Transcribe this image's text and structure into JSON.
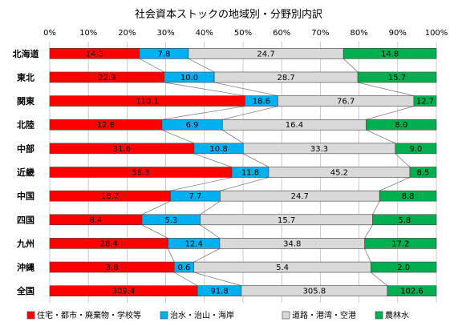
{
  "chart_data": {
    "type": "bar",
    "stacking": "percent",
    "orientation": "horizontal",
    "title": "社会資本ストックの地域別・分野別内訳",
    "xlim": [
      0,
      100
    ],
    "x_tick_labels": [
      "0%",
      "10%",
      "20%",
      "30%",
      "40%",
      "50%",
      "60%",
      "70%",
      "80%",
      "90%",
      "100%"
    ],
    "categories": [
      "北海道",
      "東北",
      "関東",
      "北陸",
      "中部",
      "近畿",
      "中国",
      "四国",
      "九州",
      "沖縄",
      "全国"
    ],
    "series": [
      {
        "name": "住宅・都市・廃棄物・学校等",
        "color": "#ff0000",
        "values": [
          14.3,
          22.9,
          110.1,
          12.8,
          31.6,
          58.3,
          18.7,
          8.4,
          28.4,
          3.8,
          309.4
        ],
        "labels": [
          "14.3",
          "22.9",
          "110.1",
          "12.8",
          "31.6",
          "58.3",
          "18.7",
          "8.4",
          "28.4",
          "3.8",
          "309.4"
        ]
      },
      {
        "name": "治水・治山・海岸",
        "color": "#00b0f0",
        "values": [
          7.8,
          10.0,
          18.6,
          6.9,
          10.8,
          11.8,
          7.7,
          5.3,
          12.4,
          0.6,
          91.8
        ],
        "labels": [
          "7.8",
          "10.0",
          "18.6",
          "6.9",
          "10.8",
          "11.8",
          "7.7",
          "5.3",
          "12.4",
          "0.6",
          "91.8"
        ]
      },
      {
        "name": "道路・港湾・空港",
        "color": "#d9d9d9",
        "values": [
          24.7,
          28.7,
          76.7,
          16.4,
          33.3,
          45.2,
          24.7,
          15.7,
          34.8,
          5.4,
          305.8
        ],
        "labels": [
          "24.7",
          "28.7",
          "76.7",
          "16.4",
          "33.3",
          "45.2",
          "24.7",
          "15.7",
          "34.8",
          "5.4",
          "305.8"
        ]
      },
      {
        "name": "農林水",
        "color": "#00b050",
        "values": [
          14.8,
          15.7,
          12.7,
          8.0,
          9.0,
          8.5,
          8.8,
          5.8,
          17.2,
          2.0,
          102.6
        ],
        "labels": [
          "14.8",
          "15.7",
          "12.7",
          "8.0",
          "9.0",
          "8.5",
          "8.8",
          "5.8",
          "17.2",
          "2.0",
          "102.6"
        ]
      }
    ],
    "series_lines": true,
    "grid": true,
    "legend_position": "bottom"
  }
}
